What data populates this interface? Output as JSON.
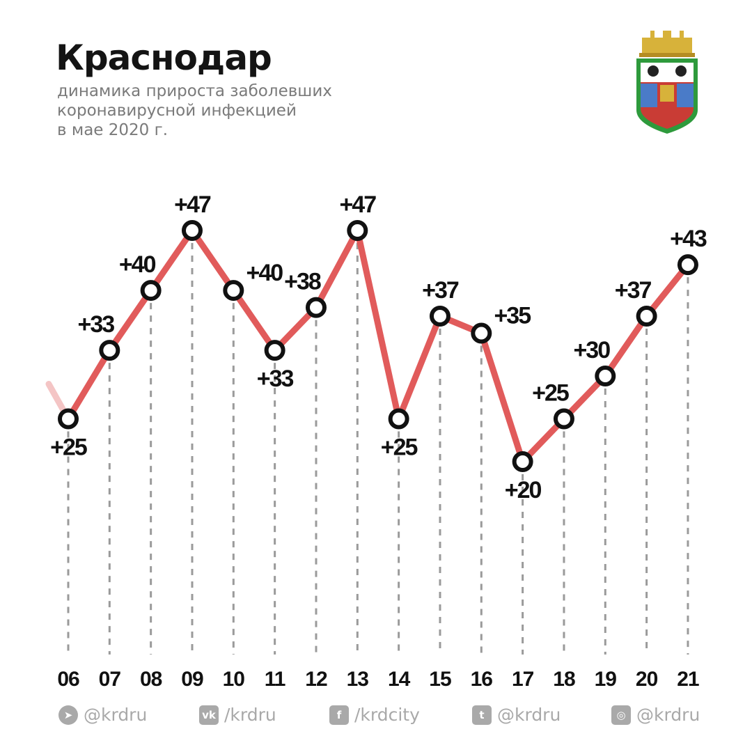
{
  "header": {
    "title": "Краснодар",
    "subtitle_lines": [
      "динамика прироста заболевших",
      "коронавирусной инфекцией",
      "в мае 2020 г."
    ]
  },
  "colors": {
    "line": "#e15b5b",
    "marker_stroke": "#111111",
    "marker_fill": "#ffffff",
    "dash": "#9a9a9a",
    "label": "#111111"
  },
  "chart_data": {
    "type": "line",
    "title": "",
    "xlabel": "",
    "ylabel": "",
    "x": [
      "06",
      "07",
      "08",
      "09",
      "10",
      "11",
      "12",
      "13",
      "14",
      "15",
      "16",
      "17",
      "18",
      "19",
      "20",
      "21"
    ],
    "values": [
      25,
      33,
      40,
      47,
      40,
      33,
      38,
      47,
      25,
      37,
      35,
      20,
      25,
      30,
      37,
      43
    ],
    "labels": [
      "+25",
      "+33",
      "+40",
      "+47",
      "+40",
      "+33",
      "+38",
      "+47",
      "+25",
      "+37",
      "+35",
      "+20",
      "+25",
      "+30",
      "+37",
      "+43"
    ],
    "ylim": [
      20,
      47
    ],
    "grid": false,
    "legend": false
  },
  "footer": {
    "socials": [
      {
        "icon": "telegram-icon",
        "glyph": "➤",
        "handle": "@krdru"
      },
      {
        "icon": "vk-icon",
        "glyph": "vk",
        "handle": "/krdru"
      },
      {
        "icon": "facebook-icon",
        "glyph": "f",
        "handle": "/krdcity"
      },
      {
        "icon": "twitter-icon",
        "glyph": "t",
        "handle": "@krdru"
      },
      {
        "icon": "instagram-icon",
        "glyph": "◎",
        "handle": "@krdru"
      }
    ]
  }
}
